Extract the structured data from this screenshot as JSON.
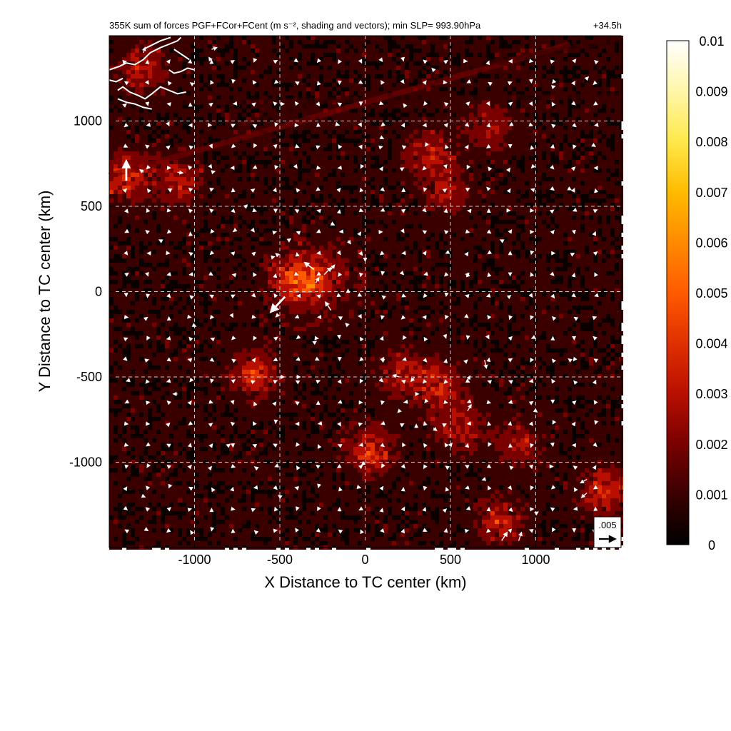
{
  "chart_data": {
    "type": "heatmap",
    "title": "355K sum of forces PGF+FCor+FCent (m s⁻², shading and vectors); min SLP= 993.90hPa",
    "time_label": "+34.5h",
    "xlabel": "X Distance to TC center (km)",
    "ylabel": "Y Distance to TC center (km)",
    "xlim": [
      -1500,
      1500
    ],
    "ylim": [
      -1500,
      1500
    ],
    "xticks": [
      -1000,
      -500,
      0,
      500,
      1000
    ],
    "yticks": [
      -1000,
      -500,
      0,
      500,
      1000
    ],
    "xtick_labels": [
      "-1000",
      "-500",
      "0",
      "500",
      "1000"
    ],
    "ytick_labels": [
      "-1000",
      "-500",
      "0",
      "500",
      "1000"
    ],
    "grid": true,
    "colorbar": {
      "min": 0,
      "max": 0.01,
      "ticks": [
        0,
        0.001,
        0.002,
        0.003,
        0.004,
        0.005,
        0.006,
        0.007,
        0.008,
        0.009,
        0.01
      ],
      "tick_labels": [
        "0",
        "0.001",
        "0.002",
        "0.003",
        "0.004",
        "0.005",
        "0.006",
        "0.007",
        "0.008",
        "0.009",
        "0.01"
      ],
      "colors": [
        "#000000",
        "#3a0000",
        "#7a0000",
        "#b81000",
        "#e03000",
        "#ff5a00",
        "#ff8a00",
        "#ffbb00",
        "#ffe84a",
        "#fff6a8",
        "#ffffff"
      ]
    },
    "reference_vector": {
      "label": ".005",
      "magnitude": 0.005
    },
    "hotspots": [
      {
        "x": -300,
        "y": 80,
        "amp": 0.0045
      },
      {
        "x": -420,
        "y": 60,
        "amp": 0.003
      },
      {
        "x": -1400,
        "y": 680,
        "amp": 0.004
      },
      {
        "x": -1100,
        "y": 640,
        "amp": 0.003
      },
      {
        "x": -650,
        "y": -480,
        "amp": 0.004
      },
      {
        "x": 30,
        "y": -930,
        "amp": 0.004
      },
      {
        "x": 220,
        "y": -480,
        "amp": 0.003
      },
      {
        "x": 440,
        "y": -560,
        "amp": 0.0035
      },
      {
        "x": 380,
        "y": 800,
        "amp": 0.003
      },
      {
        "x": 480,
        "y": 580,
        "amp": 0.0025
      },
      {
        "x": 720,
        "y": 960,
        "amp": 0.0025
      },
      {
        "x": 1420,
        "y": -1170,
        "amp": 0.004
      },
      {
        "x": 800,
        "y": -1350,
        "amp": 0.003
      },
      {
        "x": 560,
        "y": -800,
        "amp": 0.003
      },
      {
        "x": 900,
        "y": -900,
        "amp": 0.0025
      },
      {
        "x": -1300,
        "y": 1300,
        "amp": 0.003
      }
    ],
    "bands": [
      {
        "x1": -1500,
        "y1": 1100,
        "x2": 1500,
        "y2": 1150,
        "amp": 0.0012
      },
      {
        "x1": -1500,
        "y1": 680,
        "x2": 1200,
        "y2": 1450,
        "amp": 0.0015
      },
      {
        "x1": -1000,
        "y1": 900,
        "x2": -300,
        "y2": 1100,
        "amp": 0.001
      },
      {
        "x1": 500,
        "y1": 1300,
        "x2": 1500,
        "y2": 1480,
        "amp": 0.0012
      }
    ],
    "vectors": [
      {
        "x": -1400,
        "y": 650,
        "u": 0,
        "v": 0.0042
      },
      {
        "x": -470,
        "y": -30,
        "u": -0.003,
        "v": -0.0032
      },
      {
        "x": -300,
        "y": 130,
        "u": -0.002,
        "v": 0.0015
      },
      {
        "x": -240,
        "y": 100,
        "u": 0.0015,
        "v": 0.0015
      },
      {
        "x": -200,
        "y": -110,
        "u": -0.0012,
        "v": 0.0018
      },
      {
        "x": -290,
        "y": 50,
        "u": 0.0007,
        "v": 0.0012
      },
      {
        "x": -200,
        "y": 130,
        "u": 0.0008,
        "v": 0.001
      },
      {
        "x": -1100,
        "y": 700,
        "u": 0.0012,
        "v": -0.0002
      },
      {
        "x": -1300,
        "y": 700,
        "u": -0.0008,
        "v": 0.0006
      },
      {
        "x": 700,
        "y": -400,
        "u": 0.0004,
        "v": -0.0018
      },
      {
        "x": 200,
        "y": -500,
        "u": -0.0014,
        "v": 0.0004
      },
      {
        "x": 290,
        "y": -500,
        "u": -0.0008,
        "v": -0.001
      },
      {
        "x": 600,
        "y": -700,
        "u": 0.0008,
        "v": 0.0014
      },
      {
        "x": 600,
        "y": -520,
        "u": 0.0006,
        "v": 0.001
      },
      {
        "x": 1300,
        "y": -1100,
        "u": -0.0014,
        "v": -0.0008
      },
      {
        "x": 1300,
        "y": -1180,
        "u": -0.0012,
        "v": -0.001
      },
      {
        "x": 800,
        "y": -1460,
        "u": 0.0012,
        "v": 0.0018
      },
      {
        "x": 900,
        "y": -1460,
        "u": 0.0006,
        "v": 0.0018
      },
      {
        "x": -1100,
        "y": -600,
        "u": -0.001,
        "v": 0
      },
      {
        "x": -500,
        "y": -500,
        "u": 0.001,
        "v": 0
      },
      {
        "x": -400,
        "y": -500,
        "u": 0.0008,
        "v": 0
      },
      {
        "x": 300,
        "y": -800,
        "u": 0,
        "v": 0.0009
      },
      {
        "x": 0,
        "y": -1000,
        "u": -0.0008,
        "v": -0.0006
      },
      {
        "x": 400,
        "y": -800,
        "u": 0.0008,
        "v": -0.0006
      },
      {
        "x": -900,
        "y": 700,
        "u": 0.0008,
        "v": 0.0002
      },
      {
        "x": -500,
        "y": 1100,
        "u": 0.001,
        "v": 0
      },
      {
        "x": -900,
        "y": 1420,
        "u": 0.0012,
        "v": 0.0004
      },
      {
        "x": -1300,
        "y": 1400,
        "u": 0.0004,
        "v": 0.0012
      },
      {
        "x": -900,
        "y": 1350,
        "u": -0.0006,
        "v": 0.0009
      },
      {
        "x": 0,
        "y": 200,
        "u": 0,
        "v": -0.0009
      },
      {
        "x": -100,
        "y": 300,
        "u": 0.0006,
        "v": -0.0008
      },
      {
        "x": -200,
        "y": 400,
        "u": 0.0008,
        "v": -0.0004
      },
      {
        "x": -450,
        "y": 300,
        "u": 0.0006,
        "v": 0.0004
      },
      {
        "x": -550,
        "y": 200,
        "u": 0.0008,
        "v": 0.0002
      },
      {
        "x": -100,
        "y": 0,
        "u": 0,
        "v": 0.0006
      },
      {
        "x": -300,
        "y": -300,
        "u": 0.0006,
        "v": 0.0004
      },
      {
        "x": -100,
        "y": -200,
        "u": -0.0006,
        "v": 0.0006
      },
      {
        "x": 100,
        "y": -400,
        "u": 0.0004,
        "v": 0.0006
      },
      {
        "x": 300,
        "y": -600,
        "u": 0.0006,
        "v": 0
      },
      {
        "x": 200,
        "y": -700,
        "u": -0.0004,
        "v": -0.0004
      },
      {
        "x": 500,
        "y": -900,
        "u": 0.0004,
        "v": 0.0005
      },
      {
        "x": 700,
        "y": -1100,
        "u": -0.0006,
        "v": -0.0002
      },
      {
        "x": 1000,
        "y": -1300,
        "u": 0.0006,
        "v": 0.0004
      },
      {
        "x": 600,
        "y": 100,
        "u": 0.0004,
        "v": 0.0004
      },
      {
        "x": 800,
        "y": 300,
        "u": -0.0004,
        "v": 0.0002
      },
      {
        "x": 1200,
        "y": 600,
        "u": 0.0004,
        "v": -0.0002
      },
      {
        "x": 1100,
        "y": 1200,
        "u": 0.0006,
        "v": 0.0002
      },
      {
        "x": 1300,
        "y": 1250,
        "u": 0.0004,
        "v": 0.0004
      },
      {
        "x": 400,
        "y": 1300,
        "u": -0.0004,
        "v": 0.0004
      },
      {
        "x": 100,
        "y": 900,
        "u": 0.0004,
        "v": -0.0002
      },
      {
        "x": -700,
        "y": 500,
        "u": 0.0004,
        "v": 0.0004
      },
      {
        "x": -1200,
        "y": 300,
        "u": -0.0004,
        "v": 0.0002
      },
      {
        "x": -1000,
        "y": -200,
        "u": 0.0004,
        "v": -0.0002
      },
      {
        "x": -800,
        "y": -900,
        "u": 0.0004,
        "v": 0.0003
      },
      {
        "x": -1300,
        "y": -1200,
        "u": 0.0005,
        "v": -0.0002
      },
      {
        "x": -500,
        "y": -1200,
        "u": -0.0004,
        "v": 0.0003
      },
      {
        "x": 1000,
        "y": -700,
        "u": 0.0004,
        "v": -0.0003
      },
      {
        "x": 1200,
        "y": -400,
        "u": -0.0004,
        "v": 0.0003
      }
    ],
    "coastline": [
      [
        [
          -1500,
          1300
        ],
        [
          -1440,
          1320
        ],
        [
          -1400,
          1340
        ],
        [
          -1350,
          1330
        ],
        [
          -1300,
          1360
        ],
        [
          -1260,
          1400
        ],
        [
          -1200,
          1430
        ],
        [
          -1150,
          1450
        ],
        [
          -1100,
          1470
        ],
        [
          -1080,
          1490
        ]
      ],
      [
        [
          -1450,
          1180
        ],
        [
          -1420,
          1200
        ],
        [
          -1380,
          1170
        ],
        [
          -1330,
          1150
        ],
        [
          -1290,
          1130
        ],
        [
          -1250,
          1160
        ],
        [
          -1200,
          1200
        ],
        [
          -1150,
          1180
        ],
        [
          -1100,
          1160
        ],
        [
          -1050,
          1170
        ]
      ],
      [
        [
          -1500,
          1240
        ],
        [
          -1460,
          1230
        ],
        [
          -1420,
          1250
        ]
      ],
      [
        [
          -1300,
          1420
        ],
        [
          -1260,
          1440
        ],
        [
          -1200,
          1470
        ],
        [
          -1140,
          1490
        ]
      ],
      [
        [
          -1450,
          1130
        ],
        [
          -1400,
          1110
        ],
        [
          -1350,
          1100
        ],
        [
          -1300,
          1080
        ],
        [
          -1250,
          1070
        ]
      ],
      [
        [
          -1120,
          1420
        ],
        [
          -1090,
          1400
        ],
        [
          -1060,
          1380
        ],
        [
          -1030,
          1360
        ]
      ],
      [
        [
          -1150,
          1300
        ],
        [
          -1120,
          1280
        ],
        [
          -1080,
          1290
        ],
        [
          -1040,
          1310
        ],
        [
          -1000,
          1300
        ]
      ]
    ]
  }
}
